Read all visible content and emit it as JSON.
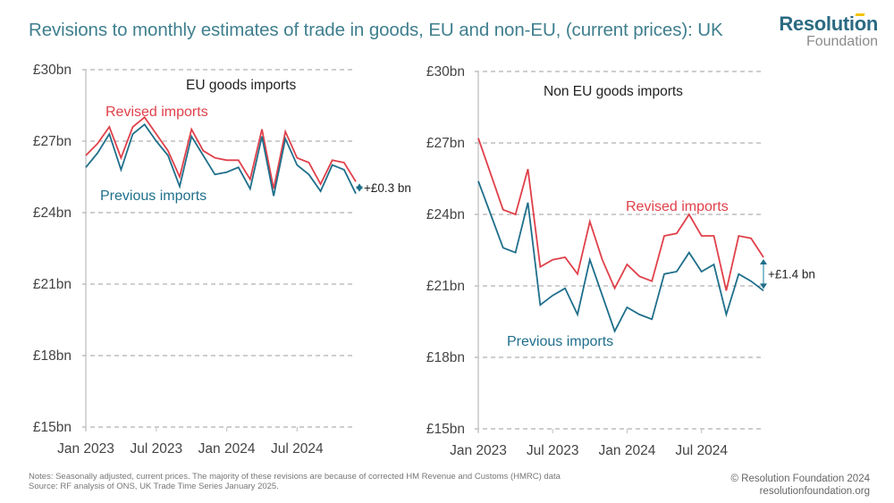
{
  "header": {
    "title": "Revisions to monthly estimates of trade in goods, EU and non-EU, (current prices): UK"
  },
  "logo": {
    "main": "Resolution",
    "sub": "Foundation"
  },
  "colors": {
    "revised": "#e0404a",
    "previous": "#1f6f8b",
    "title": "#3f7f8e",
    "grid": "#b0b0b0",
    "axis": "#c8c8c8",
    "arrow": "#1f6f8b",
    "arrow_light": "#5fa8c0"
  },
  "chart_data": [
    {
      "type": "line",
      "title": "EU goods imports",
      "xlabel": "",
      "ylabel": "",
      "ylim": [
        15,
        30
      ],
      "yticks": [
        30,
        27,
        24,
        21,
        18,
        15
      ],
      "ytick_labels": [
        "£30bn",
        "£27bn",
        "£24bn",
        "£21bn",
        "£18bn",
        "£15bn"
      ],
      "xtick_labels": [
        "Jan 2023",
        "Jul 2023",
        "Jan 2024",
        "Jul 2024"
      ],
      "xtick_index": [
        0,
        6,
        12,
        18
      ],
      "grid": true,
      "x": [
        "Jan 2023",
        "Feb 2023",
        "Mar 2023",
        "Apr 2023",
        "May 2023",
        "Jun 2023",
        "Jul 2023",
        "Aug 2023",
        "Sep 2023",
        "Oct 2023",
        "Nov 2023",
        "Dec 2023",
        "Jan 2024",
        "Feb 2024",
        "Mar 2024",
        "Apr 2024",
        "May 2024",
        "Jun 2024",
        "Jul 2024",
        "Aug 2024",
        "Sep 2024",
        "Oct 2024",
        "Nov 2024",
        "Dec 2024"
      ],
      "series": [
        {
          "name": "Revised imports",
          "color": "#e0404a",
          "values": [
            26.4,
            26.9,
            27.6,
            26.3,
            27.6,
            28.0,
            27.3,
            26.6,
            25.5,
            27.5,
            26.6,
            26.3,
            26.2,
            26.2,
            25.4,
            27.5,
            25.0,
            27.4,
            26.3,
            26.1,
            25.2,
            26.2,
            26.1,
            25.3
          ]
        },
        {
          "name": "Previous imports",
          "color": "#1f6f8b",
          "values": [
            25.9,
            26.5,
            27.3,
            25.8,
            27.3,
            27.7,
            27.0,
            26.4,
            25.1,
            27.2,
            26.4,
            25.6,
            25.7,
            25.9,
            25.0,
            27.2,
            24.7,
            27.1,
            26.0,
            25.6,
            24.9,
            26.0,
            25.8,
            24.8
          ]
        }
      ],
      "annotation": "+£0.3 bn",
      "series_label_positions": [
        "upper-left",
        "lower-left"
      ]
    },
    {
      "type": "line",
      "title": "Non EU goods imports",
      "xlabel": "",
      "ylabel": "",
      "ylim": [
        15,
        30
      ],
      "yticks": [
        30,
        27,
        24,
        21,
        18,
        15
      ],
      "ytick_labels": [
        "£30bn",
        "£27bn",
        "£24bn",
        "£21bn",
        "£18bn",
        "£15bn"
      ],
      "xtick_labels": [
        "Jan 2023",
        "Jul 2023",
        "Jan 2024",
        "Jul 2024"
      ],
      "xtick_index": [
        0,
        6,
        12,
        18
      ],
      "grid": true,
      "x": [
        "Jan 2023",
        "Feb 2023",
        "Mar 2023",
        "Apr 2023",
        "May 2023",
        "Jun 2023",
        "Jul 2023",
        "Aug 2023",
        "Sep 2023",
        "Oct 2023",
        "Nov 2023",
        "Dec 2023",
        "Jan 2024",
        "Feb 2024",
        "Mar 2024",
        "Apr 2024",
        "May 2024",
        "Jun 2024",
        "Jul 2024",
        "Aug 2024",
        "Sep 2024",
        "Oct 2024",
        "Nov 2024",
        "Dec 2024"
      ],
      "series": [
        {
          "name": "Revised imports",
          "color": "#e0404a",
          "values": [
            27.2,
            25.7,
            24.2,
            24.0,
            25.9,
            21.8,
            22.1,
            22.2,
            21.5,
            23.7,
            22.1,
            20.9,
            21.9,
            21.4,
            21.2,
            23.1,
            23.2,
            24.0,
            23.1,
            23.1,
            20.8,
            23.1,
            23.0,
            22.2
          ]
        },
        {
          "name": "Previous imports",
          "color": "#1f6f8b",
          "values": [
            25.4,
            24.0,
            22.6,
            22.4,
            24.5,
            20.2,
            20.6,
            20.9,
            19.8,
            22.1,
            20.6,
            19.1,
            20.1,
            19.8,
            19.6,
            21.5,
            21.6,
            22.4,
            21.6,
            21.9,
            19.8,
            21.5,
            21.2,
            20.8
          ]
        }
      ],
      "annotation": "+£1.4 bn",
      "series_label_positions": [
        "upper-right",
        "lower-left"
      ]
    }
  ],
  "footer": {
    "notes": "Notes: Seasonally adjusted, current prices. The majority of these revisions are because of corrected HM Revenue and Customs (HMRC) data",
    "source": "Source: RF analysis of ONS, UK Trade Time Series January 2025.",
    "copyright": "© Resolution Foundation 2024",
    "website": "resolutionfoundation.org"
  }
}
